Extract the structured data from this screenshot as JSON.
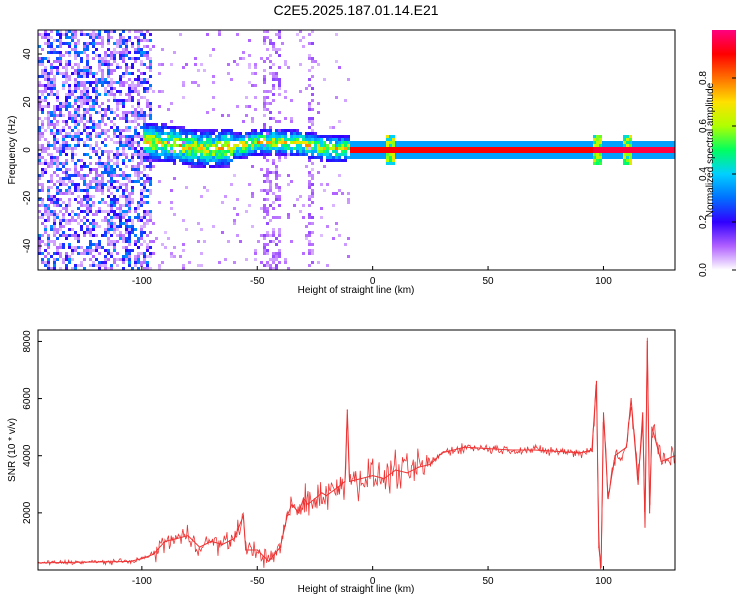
{
  "title": "C2E5.2025.187.01.14.E21",
  "chart_data": [
    {
      "type": "heatmap",
      "xlabel": "Height of straight line (km)",
      "ylabel": "Frequency (Hz)",
      "xlim": [
        -145,
        131
      ],
      "ylim": [
        -50,
        50
      ],
      "xticks": [
        -100,
        -50,
        0,
        50,
        100
      ],
      "yticks": [
        -40,
        -20,
        0,
        20,
        40
      ],
      "colorbar": {
        "label": "Normalized spectral amplitude",
        "range": [
          0,
          1
        ],
        "ticks": [
          "0.0",
          "0.2",
          "0.4",
          "0.6",
          "0.8"
        ],
        "colors": [
          "#ffffff",
          "#b060ff",
          "#3000ff",
          "#0070ff",
          "#00d0ff",
          "#00ff60",
          "#b0ff00",
          "#ffe000",
          "#ff7000",
          "#ff0000",
          "#ff0080"
        ]
      },
      "features": [
        {
          "x_range": [
            -145,
            -96
          ],
          "description": "broadband noise, amplitude 0.2-0.3"
        },
        {
          "x_range": [
            -100,
            -10
          ],
          "center_freq": 2,
          "spread_hz": 8,
          "peak_amplitude": 0.8
        },
        {
          "x_range": [
            -10,
            131
          ],
          "center_freq": 0,
          "spread_hz": 1,
          "peak_amplitude": 1.0
        }
      ]
    },
    {
      "type": "line",
      "xlabel": "Height of straight line (km)",
      "ylabel": "SNR (10 * v/v)",
      "xlim": [
        -145,
        131
      ],
      "ylim": [
        0,
        8400
      ],
      "xticks": [
        -100,
        -50,
        0,
        50,
        100
      ],
      "yticks": [
        2000,
        4000,
        6000,
        8000
      ],
      "color": "#ee3333",
      "series": [
        {
          "x": [
            -145,
            -120,
            -105,
            -100,
            -95,
            -90,
            -85,
            -80,
            -75,
            -70,
            -65,
            -60,
            -56,
            -55,
            -50,
            -45,
            -40,
            -37,
            -35,
            -32,
            -30,
            -28,
            -25,
            -22,
            -20,
            -15,
            -12,
            -11,
            -10,
            -5,
            0,
            5,
            10,
            15,
            20,
            25,
            30,
            40,
            50,
            60,
            70,
            80,
            90,
            95,
            97,
            98,
            99,
            100,
            102,
            105,
            110,
            112,
            115,
            117,
            118,
            119,
            120,
            121,
            125,
            131
          ],
          "y": [
            250,
            280,
            300,
            400,
            550,
            1000,
            1100,
            1200,
            800,
            1000,
            900,
            1100,
            1900,
            700,
            700,
            300,
            800,
            1900,
            2300,
            2000,
            2500,
            2300,
            2500,
            2700,
            2600,
            2900,
            3100,
            5600,
            3100,
            3200,
            3300,
            3200,
            3500,
            3400,
            3600,
            3700,
            4100,
            4300,
            4250,
            4200,
            4200,
            4150,
            4100,
            4200,
            6600,
            800,
            100,
            5500,
            2500,
            4000,
            4300,
            6000,
            3000,
            5500,
            1500,
            8000,
            2000,
            5000,
            3800,
            4000
          ]
        }
      ]
    }
  ]
}
